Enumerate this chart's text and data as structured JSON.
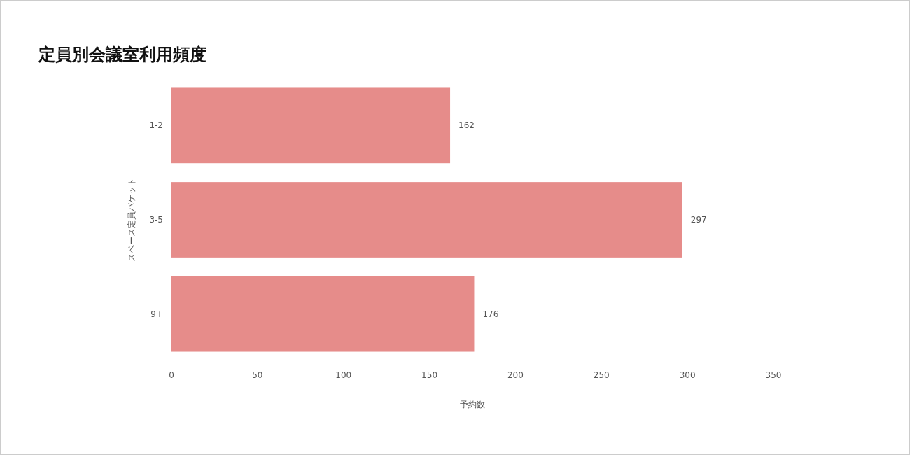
{
  "chart_data": {
    "type": "bar",
    "orientation": "horizontal",
    "title": "定員別会議室利用頻度",
    "xlabel": "予約数",
    "ylabel": "スペース定員バケット",
    "categories": [
      "1-2",
      "3-5",
      "9+"
    ],
    "values": [
      162,
      297,
      176
    ],
    "color": "#e68c8a",
    "xlim": [
      0,
      350
    ],
    "xticks": [
      0,
      50,
      100,
      150,
      200,
      250,
      300,
      350
    ],
    "data_labels": true
  }
}
